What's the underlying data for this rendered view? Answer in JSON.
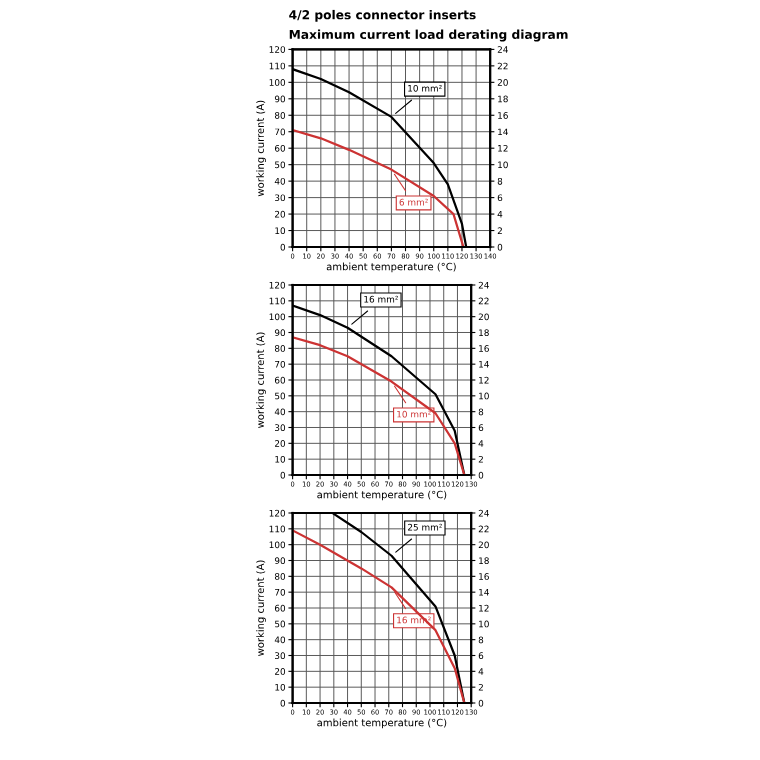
{
  "chart_data": [
    {
      "type": "line",
      "title": "4/2 poles connector inserts",
      "subtitle": "Maximum current load derating diagram",
      "xlabel": "ambient temperature (°C)",
      "ylabel": "working current (A)",
      "xlim": [
        0,
        140
      ],
      "xticks": [
        0,
        10,
        20,
        30,
        40,
        50,
        60,
        70,
        80,
        90,
        100,
        110,
        120,
        130,
        140
      ],
      "ylim": [
        0,
        120
      ],
      "yticks": [
        0,
        10,
        20,
        30,
        40,
        50,
        60,
        70,
        80,
        90,
        100,
        110,
        120
      ],
      "y2lim": [
        0,
        24
      ],
      "y2ticks": [
        0,
        2,
        4,
        6,
        8,
        10,
        12,
        14,
        16,
        18,
        20,
        22,
        24
      ],
      "grid": true,
      "series": [
        {
          "name": "10 mm²",
          "color": "#000000",
          "x": [
            0,
            20,
            40,
            70,
            100,
            110,
            120,
            123
          ],
          "values": [
            108,
            102,
            94,
            79,
            51,
            38,
            14,
            0
          ]
        },
        {
          "name": "6 mm²",
          "color": "#cc3333",
          "x": [
            0,
            20,
            40,
            70,
            100,
            114,
            121
          ],
          "values": [
            71,
            66,
            59,
            47,
            31,
            20,
            0
          ]
        }
      ]
    },
    {
      "type": "line",
      "xlabel": "ambient temperature (°C)",
      "ylabel": "working current (A)",
      "xlim": [
        0,
        130
      ],
      "xticks": [
        0,
        10,
        20,
        30,
        40,
        50,
        60,
        70,
        80,
        90,
        100,
        110,
        120,
        130
      ],
      "ylim": [
        0,
        120
      ],
      "yticks": [
        0,
        10,
        20,
        30,
        40,
        50,
        60,
        70,
        80,
        90,
        100,
        110,
        120
      ],
      "y2lim": [
        0,
        24
      ],
      "y2ticks": [
        0,
        2,
        4,
        6,
        8,
        10,
        12,
        14,
        16,
        18,
        20,
        22,
        24
      ],
      "grid": true,
      "series": [
        {
          "name": "16 mm²",
          "color": "#000000",
          "x": [
            0,
            20,
            40,
            72,
            104,
            118,
            125
          ],
          "values": [
            107,
            101,
            93,
            75,
            51,
            28,
            0
          ]
        },
        {
          "name": "10 mm²",
          "color": "#cc3333",
          "x": [
            0,
            20,
            40,
            72,
            104,
            118,
            125
          ],
          "values": [
            87,
            82,
            75,
            59,
            39,
            20,
            0
          ]
        }
      ]
    },
    {
      "type": "line",
      "xlabel": "ambient temperature (°C)",
      "ylabel": "working current (A)",
      "xlim": [
        0,
        130
      ],
      "xticks": [
        0,
        10,
        20,
        30,
        40,
        50,
        60,
        70,
        80,
        90,
        100,
        110,
        120,
        130
      ],
      "ylim": [
        0,
        120
      ],
      "yticks": [
        0,
        10,
        20,
        30,
        40,
        50,
        60,
        70,
        80,
        90,
        100,
        110,
        120
      ],
      "y2lim": [
        0,
        24
      ],
      "y2ticks": [
        0,
        2,
        4,
        6,
        8,
        10,
        12,
        14,
        16,
        18,
        20,
        22,
        24
      ],
      "grid": true,
      "series": [
        {
          "name": "25 mm²",
          "color": "#000000",
          "x": [
            29,
            50,
            72,
            104,
            118,
            125
          ],
          "values": [
            120,
            108,
            93,
            61,
            30,
            0
          ]
        },
        {
          "name": "16 mm²",
          "color": "#cc3333",
          "x": [
            0,
            20,
            50,
            72,
            104,
            118,
            125
          ],
          "values": [
            109,
            100,
            85,
            73,
            46,
            22,
            0
          ]
        }
      ]
    }
  ]
}
